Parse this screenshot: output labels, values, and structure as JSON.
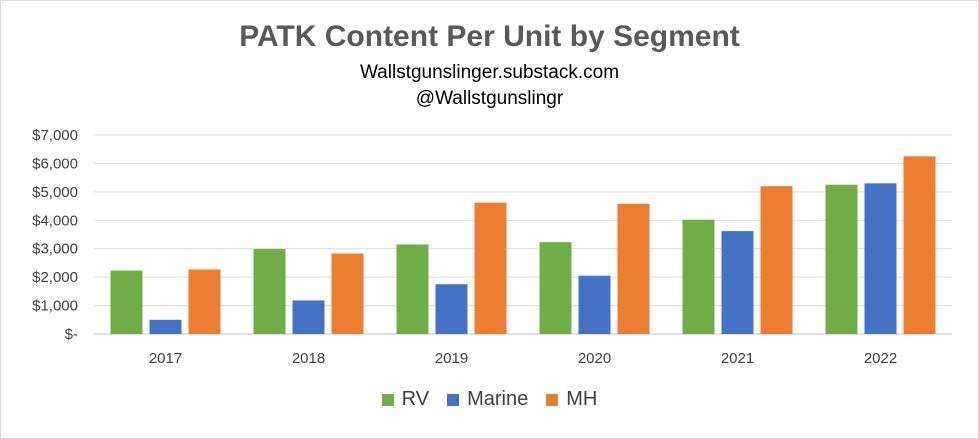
{
  "chart_data": {
    "type": "bar",
    "title": "PATK Content Per Unit by Segment",
    "subtitle": [
      "Wallstgunslinger.substack.com",
      "@Wallstgunslingr"
    ],
    "categories": [
      "2017",
      "2018",
      "2019",
      "2020",
      "2021",
      "2022"
    ],
    "series": [
      {
        "name": "RV",
        "color": "#70ad47",
        "values": [
          2230,
          2990,
          3150,
          3230,
          4020,
          5250
        ]
      },
      {
        "name": "Marine",
        "color": "#4472c4",
        "values": [
          500,
          1180,
          1750,
          2050,
          3620,
          5300
        ]
      },
      {
        "name": "MH",
        "color": "#ed7d31",
        "values": [
          2270,
          2830,
          4620,
          4580,
          5200,
          6250
        ]
      }
    ],
    "ylim": [
      0,
      7000
    ],
    "yticks": [
      0,
      1000,
      2000,
      3000,
      4000,
      5000,
      6000,
      7000
    ],
    "ytick_labels": [
      "$-",
      "$1,000",
      "$2,000",
      "$3,000",
      "$4,000",
      "$5,000",
      "$6,000",
      "$7,000"
    ],
    "grid": true,
    "legend_position": "bottom"
  }
}
